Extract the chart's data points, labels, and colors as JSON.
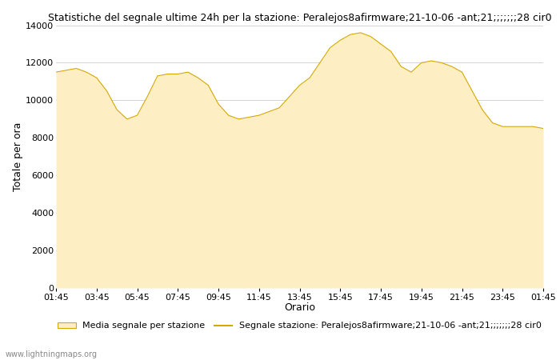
{
  "title": "Statistiche del segnale ultime 24h per la stazione: Peralejos8afirmware;21-10-06 -ant;21;;;;;;;28 cir0",
  "xlabel": "Orario",
  "ylabel": "Totale per ora",
  "fill_color": "#fdefc3",
  "line_color": "#d4a800",
  "bg_color": "#ffffff",
  "grid_color": "#cccccc",
  "ylim": [
    0,
    14000
  ],
  "yticks": [
    0,
    2000,
    4000,
    6000,
    8000,
    10000,
    12000,
    14000
  ],
  "xtick_labels": [
    "01:45",
    "03:45",
    "05:45",
    "07:45",
    "09:45",
    "11:45",
    "13:45",
    "15:45",
    "17:45",
    "19:45",
    "21:45",
    "23:45",
    "01:45"
  ],
  "legend_area_label": "Media segnale per stazione",
  "legend_line_label": "Segnale stazione: Peralejos8afirmware;21-10-06 -ant;21;;;;;;;28 cir0",
  "watermark": "www.lightningmaps.org",
  "x_hrs": [
    0,
    0.5,
    1,
    1.5,
    2,
    2.5,
    3,
    3.5,
    4,
    4.5,
    5,
    5.5,
    6,
    6.5,
    7,
    7.5,
    8,
    8.5,
    9,
    9.5,
    10,
    10.5,
    11,
    11.5,
    12,
    12.5,
    13,
    13.5,
    14,
    14.5,
    15,
    15.5,
    16,
    16.5,
    17,
    17.5,
    18,
    18.5,
    19,
    19.5,
    20,
    20.5,
    21,
    21.5,
    22,
    22.5,
    23,
    23.5,
    24
  ],
  "y_vals": [
    11500,
    11600,
    11700,
    11500,
    11200,
    10500,
    9500,
    9000,
    9200,
    10200,
    11300,
    11400,
    11400,
    11500,
    11200,
    10800,
    9800,
    9200,
    9000,
    9100,
    9200,
    9400,
    9600,
    10200,
    10800,
    11200,
    12000,
    12800,
    13200,
    13500,
    13600,
    13400,
    13000,
    12600,
    11800,
    11500,
    12000,
    12100,
    12000,
    11800,
    11500,
    10500,
    9500,
    8800,
    8600,
    8600,
    8600,
    8600,
    8500
  ],
  "title_fontsize": 9,
  "axis_label_fontsize": 9,
  "tick_fontsize": 8,
  "legend_fontsize": 8,
  "watermark_fontsize": 7
}
